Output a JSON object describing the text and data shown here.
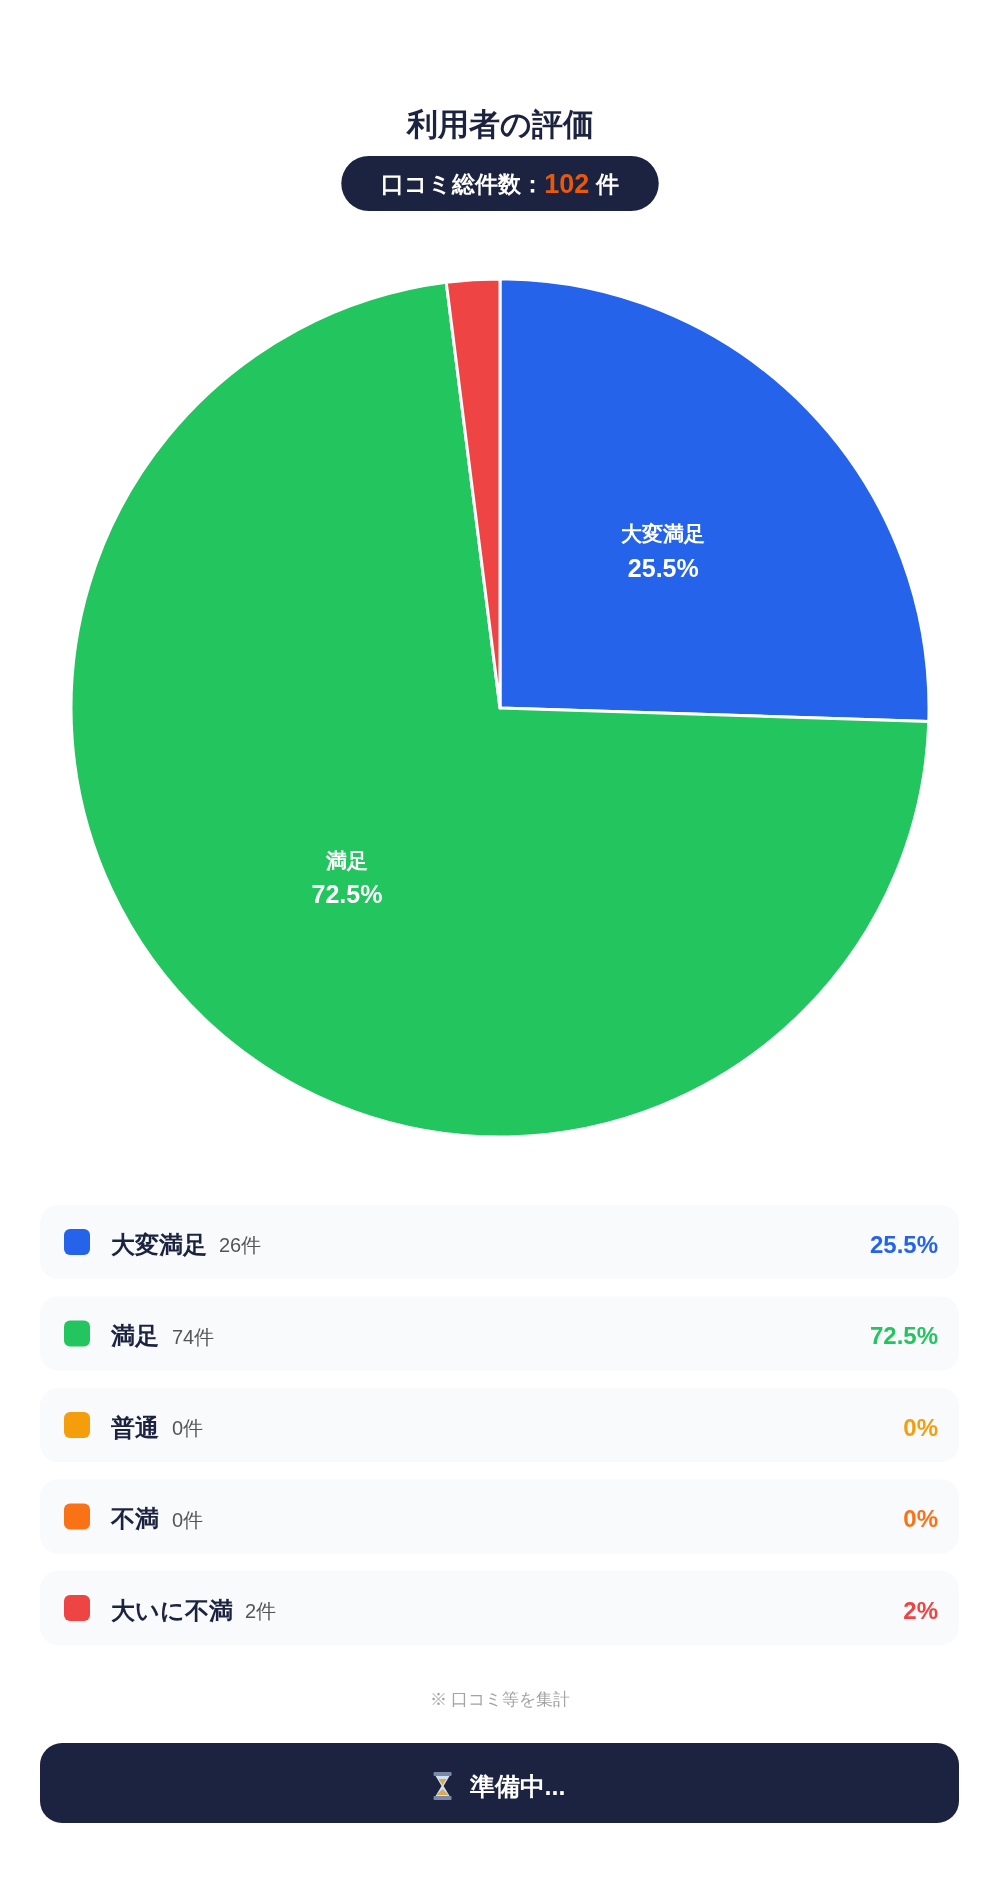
{
  "chart_data": {
    "type": "pie",
    "title": "利用者の評価",
    "subtitle": "口コミ総件数：102 件",
    "categories": [
      "大変満足",
      "満足",
      "普通",
      "不満",
      "大いに不満"
    ],
    "values": [
      25.5,
      72.5,
      0,
      0,
      2
    ],
    "colors": [
      "#2563eb",
      "#22c55e",
      "#f59e0b",
      "#f97316",
      "#ef4444"
    ],
    "value_labels": [
      "25.5%",
      "72.5%",
      "0%",
      "0%",
      "2%"
    ],
    "legend": "bottom",
    "annotations": [
      "26件",
      "74件",
      "0件",
      "0件",
      "2件",
      "※ 口コミ等を集計",
      "準備中..."
    ]
  }
}
